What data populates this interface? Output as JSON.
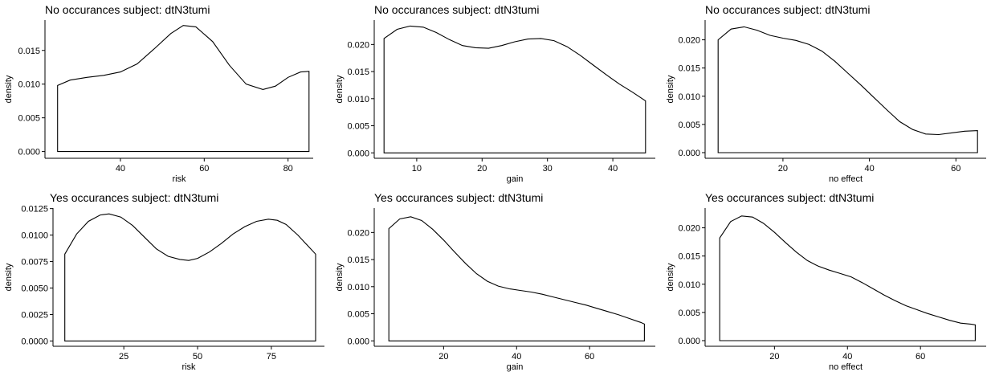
{
  "chart_data": [
    {
      "type": "area",
      "title": "No occurances subject:  dtN3tumi",
      "xlabel": "risk",
      "ylabel": "density",
      "xlim": [
        22,
        86
      ],
      "ylim": [
        -0.001,
        0.0195
      ],
      "xticks": [
        40,
        60,
        80
      ],
      "yticks": [
        0.0,
        0.005,
        0.01,
        0.015
      ],
      "ytick_labels": [
        "0.000",
        "0.005",
        "0.010",
        "0.015"
      ],
      "series": [
        {
          "x": [
            25,
            28,
            32,
            36,
            40,
            44,
            48,
            52,
            55,
            58,
            62,
            66,
            70,
            74,
            77,
            80,
            83,
            85
          ],
          "values": [
            0.0098,
            0.0106,
            0.011,
            0.0113,
            0.0118,
            0.013,
            0.0152,
            0.0175,
            0.0187,
            0.0185,
            0.0163,
            0.0128,
            0.01,
            0.0092,
            0.0097,
            0.011,
            0.0118,
            0.0119
          ]
        }
      ]
    },
    {
      "type": "area",
      "title": "No occurances subject:  dtN3tumi",
      "xlabel": "gain",
      "ylabel": "density",
      "xlim": [
        3.5,
        46.5
      ],
      "ylim": [
        -0.001,
        0.0245
      ],
      "xticks": [
        10,
        20,
        30,
        40
      ],
      "yticks": [
        0.0,
        0.005,
        0.01,
        0.015,
        0.02
      ],
      "ytick_labels": [
        "0.000",
        "0.005",
        "0.010",
        "0.015",
        "0.020"
      ],
      "series": [
        {
          "x": [
            5,
            7,
            9,
            11,
            13,
            15,
            17,
            19,
            21,
            23,
            25,
            27,
            29,
            31,
            33,
            35,
            37,
            39,
            41,
            43,
            45
          ],
          "values": [
            0.0211,
            0.0228,
            0.0234,
            0.0232,
            0.0222,
            0.0209,
            0.0198,
            0.0194,
            0.0193,
            0.0198,
            0.0205,
            0.021,
            0.0211,
            0.0207,
            0.0196,
            0.018,
            0.0162,
            0.0144,
            0.0127,
            0.0112,
            0.0096
          ]
        }
      ]
    },
    {
      "type": "area",
      "title": "No occurances subject:  dtN3tumi",
      "xlabel": "no effect",
      "ylabel": "density",
      "xlim": [
        2,
        67
      ],
      "ylim": [
        -0.001,
        0.0235
      ],
      "xticks": [
        20,
        40,
        60
      ],
      "yticks": [
        0.0,
        0.005,
        0.01,
        0.015,
        0.02
      ],
      "ytick_labels": [
        "0.000",
        "0.005",
        "0.010",
        "0.015",
        "0.020"
      ],
      "series": [
        {
          "x": [
            5,
            8,
            11,
            14,
            17,
            20,
            23,
            26,
            29,
            32,
            35,
            38,
            41,
            44,
            47,
            50,
            53,
            56,
            59,
            62,
            65
          ],
          "values": [
            0.02,
            0.0219,
            0.0223,
            0.0217,
            0.0208,
            0.0203,
            0.0199,
            0.0192,
            0.018,
            0.0162,
            0.0141,
            0.012,
            0.0098,
            0.0076,
            0.0055,
            0.0041,
            0.0033,
            0.0032,
            0.0035,
            0.0038,
            0.0039
          ]
        }
      ]
    },
    {
      "type": "area",
      "title": "Yes occurances subject:  dtN3tumi",
      "xlabel": "risk",
      "ylabel": "density",
      "xlim": [
        1,
        93
      ],
      "ylim": [
        -0.0005,
        0.01255
      ],
      "xticks": [
        25,
        50,
        75
      ],
      "yticks": [
        0.0,
        0.0025,
        0.005,
        0.0075,
        0.01,
        0.0125
      ],
      "ytick_labels": [
        "0.0000",
        "0.0025",
        "0.0050",
        "0.0075",
        "0.0100",
        "0.0125"
      ],
      "series": [
        {
          "x": [
            5,
            9,
            13,
            17,
            20,
            24,
            28,
            32,
            36,
            40,
            44,
            47,
            50,
            54,
            58,
            62,
            66,
            70,
            74,
            77,
            80,
            84,
            88,
            90
          ],
          "values": [
            0.0082,
            0.0101,
            0.0113,
            0.0119,
            0.012,
            0.0117,
            0.0109,
            0.0098,
            0.0087,
            0.008,
            0.0077,
            0.0076,
            0.0078,
            0.0084,
            0.0092,
            0.0101,
            0.0108,
            0.0113,
            0.0115,
            0.0114,
            0.011,
            0.01,
            0.0088,
            0.0082
          ]
        }
      ]
    },
    {
      "type": "area",
      "title": "Yes occurances subject:  dtN3tumi",
      "xlabel": "gain",
      "ylabel": "density",
      "xlim": [
        1,
        78
      ],
      "ylim": [
        -0.001,
        0.0245
      ],
      "xticks": [
        20,
        40,
        60
      ],
      "yticks": [
        0.0,
        0.005,
        0.01,
        0.015,
        0.02
      ],
      "ytick_labels": [
        "0.000",
        "0.005",
        "0.010",
        "0.015",
        "0.020"
      ],
      "series": [
        {
          "x": [
            5,
            8,
            11,
            14,
            17,
            20,
            23,
            26,
            29,
            32,
            35,
            38,
            41,
            44,
            47,
            50,
            53,
            56,
            59,
            62,
            65,
            68,
            71,
            74,
            75
          ],
          "values": [
            0.0207,
            0.0225,
            0.0229,
            0.0222,
            0.0206,
            0.0186,
            0.0164,
            0.0143,
            0.0124,
            0.011,
            0.0101,
            0.0096,
            0.0093,
            0.009,
            0.0086,
            0.0081,
            0.0076,
            0.0071,
            0.0066,
            0.006,
            0.0054,
            0.0048,
            0.0041,
            0.0034,
            0.0031
          ]
        }
      ]
    },
    {
      "type": "area",
      "title": "Yes occurances subject:  dtN3tumi",
      "xlabel": "no effect",
      "ylabel": "density",
      "xlim": [
        1,
        78
      ],
      "ylim": [
        -0.001,
        0.0235
      ],
      "xticks": [
        20,
        40,
        60
      ],
      "yticks": [
        0.0,
        0.005,
        0.01,
        0.015,
        0.02
      ],
      "ytick_labels": [
        "0.000",
        "0.005",
        "0.010",
        "0.015",
        "0.020"
      ],
      "series": [
        {
          "x": [
            5,
            8,
            11,
            14,
            17,
            20,
            23,
            26,
            29,
            32,
            35,
            38,
            41,
            44,
            47,
            50,
            53,
            56,
            59,
            62,
            65,
            68,
            71,
            74,
            75
          ],
          "values": [
            0.0182,
            0.0211,
            0.0221,
            0.0219,
            0.0208,
            0.0192,
            0.0174,
            0.0157,
            0.0142,
            0.0132,
            0.0125,
            0.0119,
            0.0113,
            0.0103,
            0.0092,
            0.0081,
            0.0071,
            0.0062,
            0.0055,
            0.0048,
            0.0042,
            0.0036,
            0.0031,
            0.0029,
            0.0028
          ]
        }
      ]
    }
  ]
}
